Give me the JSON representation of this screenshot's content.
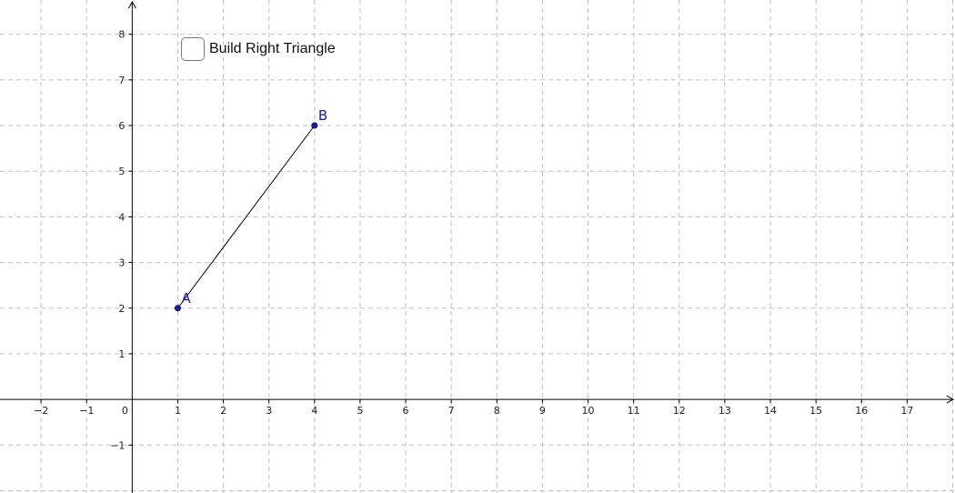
{
  "graphics": {
    "x_range": [
      -2.9,
      18.05
    ],
    "y_range": [
      -2.05,
      8.75
    ],
    "x_ticks": [
      -2,
      -1,
      0,
      1,
      2,
      3,
      4,
      5,
      6,
      7,
      8,
      9,
      10,
      11,
      12,
      13,
      14,
      15,
      16,
      17
    ],
    "x_tick_labels": [
      "−2",
      "−1",
      "0",
      "1",
      "2",
      "3",
      "4",
      "5",
      "6",
      "7",
      "8",
      "9",
      "10",
      "11",
      "12",
      "13",
      "14",
      "15",
      "16",
      "17"
    ],
    "y_ticks": [
      -1,
      1,
      2,
      3,
      4,
      5,
      6,
      7,
      8
    ],
    "y_tick_labels": [
      "−1",
      "1",
      "2",
      "3",
      "4",
      "5",
      "6",
      "7",
      "8"
    ],
    "grid": true,
    "grid_color": "#c0c0c0",
    "axis_color": "#000000",
    "point_color": "#1a1aa8",
    "segment_color": "#000000"
  },
  "points": [
    {
      "name": "A",
      "x": 1,
      "y": 2
    },
    {
      "name": "B",
      "x": 4,
      "y": 6
    }
  ],
  "segment": {
    "from": "A",
    "to": "B"
  },
  "checkbox": {
    "label": "Build Right Triangle",
    "checked": false
  }
}
